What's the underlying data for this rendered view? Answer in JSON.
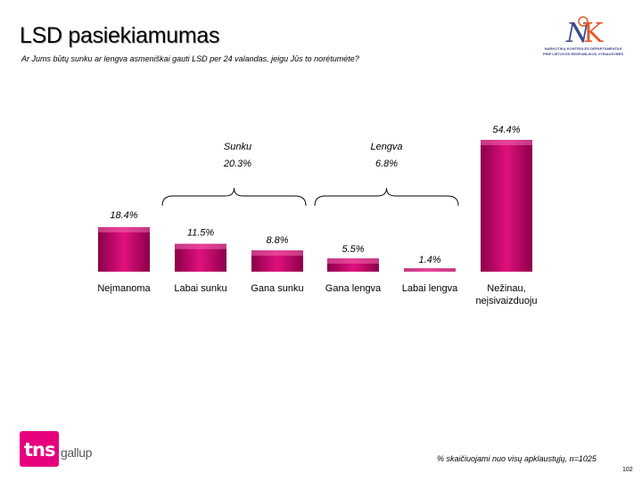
{
  "slide": {
    "title": "LSD pasiekiamumas",
    "subtitle": "Ar Jums būtų sunku ar lengva asmeniškai gauti LSD per 24 valandas, jeigu Jūs to norėtumėte?",
    "note": "% skaičiuojami nuo visų apklaustųjų, n=1025",
    "page_number": "102"
  },
  "logos": {
    "top_line1": "NARKOTIKŲ KONTROLĖS DEPARTAMENTAS",
    "top_line2": "PRIE LIETUVOS RESPUBLIKOS VYRIAUSYBĖS",
    "tns": "tns",
    "gallup": "gallup"
  },
  "colors": {
    "bar_dark": "#8b004a",
    "bar_mid": "#e0107e",
    "bar_light": "#f26aae",
    "logo_pink": "#e6007e",
    "logo_blue": "#3a4a8a"
  },
  "chart_data": {
    "type": "bar",
    "categories": [
      "Neįmanoma",
      "Labai sunku",
      "Gana sunku",
      "Gana lengva",
      "Labai lengva",
      "Nežinau, neįsivaizduoju"
    ],
    "category_lines": [
      [
        "Neįmanoma"
      ],
      [
        "Labai sunku"
      ],
      [
        "Gana sunku"
      ],
      [
        "Gana lengva"
      ],
      [
        "Labai lengva"
      ],
      [
        "Nežinau,",
        "neįsivaizduoju"
      ]
    ],
    "values": [
      18.4,
      11.5,
      8.8,
      5.5,
      1.4,
      54.4
    ],
    "value_labels": [
      "18.4%",
      "11.5%",
      "8.8%",
      "5.5%",
      "1.4%",
      "54.4%"
    ],
    "groups": [
      {
        "label": "Sunku",
        "value_label": "20.3%",
        "from": 1,
        "to": 2
      },
      {
        "label": "Lengva",
        "value_label": "6.8%",
        "from": 3,
        "to": 4
      }
    ],
    "unit": "%",
    "grid": false,
    "legend": "none"
  }
}
